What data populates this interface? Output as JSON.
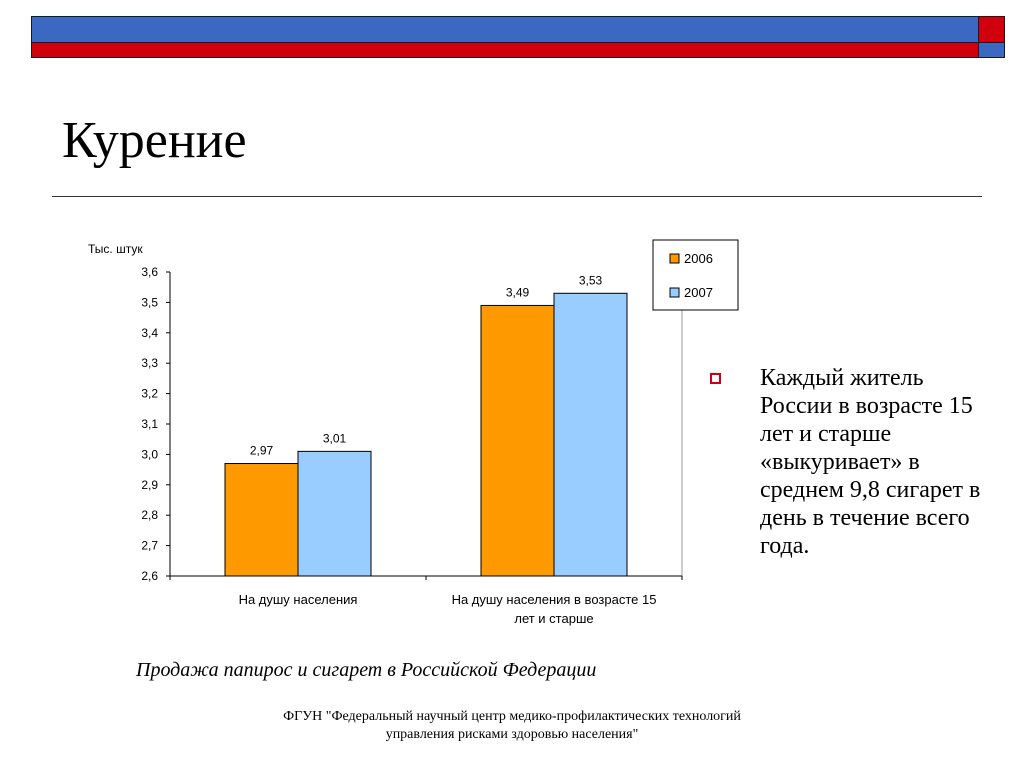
{
  "slide": {
    "title": "Курение",
    "bullet": "Каждый житель России в возрасте 15 лет и старше «выкуривает» в среднем 9,8 сигарет в день в течение всего года.",
    "caption": "Продажа папирос и сигарет в Российской Федерации",
    "footer": [
      "ФГУН \"Федеральный научный центр медико-профилактических технологий",
      "управления рисками здоровью населения\""
    ]
  },
  "colors": {
    "band_blue": "#3b69c2",
    "band_red": "#d0000c",
    "series_2006": "#ff9900",
    "series_2007": "#99ccff"
  },
  "chart_data": {
    "type": "bar",
    "ylabel": "Тыс. штук",
    "ylim": [
      2.6,
      3.6
    ],
    "yticks": [
      "2,6",
      "2,7",
      "2,8",
      "2,9",
      "3,0",
      "3,1",
      "3,2",
      "3,3",
      "3,4",
      "3,5",
      "3,6"
    ],
    "categories": [
      [
        "На душу населения"
      ],
      [
        "На душу населения в возрасте 15",
        "лет и старше"
      ]
    ],
    "series": [
      {
        "name": "2006",
        "color": "#ff9900",
        "values": [
          2.97,
          3.49
        ],
        "labels": [
          "2,97",
          "3,49"
        ]
      },
      {
        "name": "2007",
        "color": "#99ccff",
        "values": [
          3.01,
          3.53
        ],
        "labels": [
          "3,01",
          "3,53"
        ]
      }
    ],
    "legend_position": "top-right",
    "grid": false
  }
}
